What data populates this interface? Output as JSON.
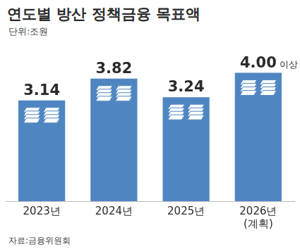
{
  "chart_data": {
    "type": "bar",
    "title": "연도별 방산 정책금융 목표액",
    "subtitle": "단위:조원",
    "source": "자료:금융위원회",
    "categories": [
      "2023년",
      "2024년",
      "2025년",
      "2026년 (계획)"
    ],
    "values": [
      3.14,
      3.82,
      3.24,
      4.0
    ],
    "value_labels": [
      "3.14",
      "3.82",
      "3.24",
      "4.00 이상"
    ],
    "color": "#4f86c2",
    "ylim": [
      0,
      5
    ],
    "data_labels": true,
    "tick_labels": "x",
    "grid": false
  }
}
